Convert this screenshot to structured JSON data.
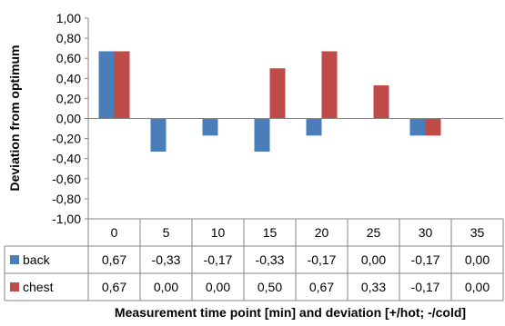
{
  "chart_data": {
    "type": "bar",
    "categories": [
      "0",
      "5",
      "10",
      "15",
      "20",
      "25",
      "30",
      "35"
    ],
    "series": [
      {
        "name": "back",
        "color": "#4a7ebb",
        "values": [
          0.67,
          -0.33,
          -0.17,
          -0.33,
          -0.17,
          0.0,
          -0.17,
          0.0
        ],
        "labels": [
          "0,67",
          "-0,33",
          "-0,17",
          "-0,33",
          "-0,17",
          "0,00",
          "-0,17",
          "0,00"
        ]
      },
      {
        "name": "chest",
        "color": "#be4b48",
        "values": [
          0.67,
          0.0,
          0.0,
          0.5,
          0.67,
          0.33,
          -0.17,
          0.0
        ],
        "labels": [
          "0,67",
          "0,00",
          "0,00",
          "0,50",
          "0,67",
          "0,33",
          "-0,17",
          "0,00"
        ]
      }
    ],
    "ylim": [
      -1.0,
      1.0
    ],
    "yticks": [
      "1,00",
      "0,80",
      "0,60",
      "0,40",
      "0,20",
      "0,00",
      "-0,20",
      "-0,40",
      "-0,60",
      "-0,80",
      "-1,00"
    ],
    "ylabel": "Deviation from optimum",
    "xlabel": "Measurement time point [min] and deviation [+/hot; -/cold]",
    "grid": false,
    "legend": "data-table"
  }
}
